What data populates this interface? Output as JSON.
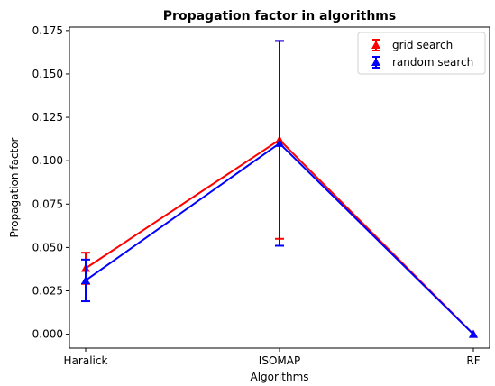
{
  "chart_data": {
    "type": "line",
    "title": "Propagation factor in algorithms",
    "xlabel": "Algorithms",
    "ylabel": "Propagation factor",
    "categories": [
      "Haralick",
      "ISOMAP",
      "RF"
    ],
    "ylim": [
      -0.008,
      0.177
    ],
    "yticks": [
      "0.000",
      "0.025",
      "0.050",
      "0.075",
      "0.100",
      "0.125",
      "0.150",
      "0.175"
    ],
    "grid": false,
    "legend_position": "top-right",
    "series": [
      {
        "name": "grid search",
        "color": "#ff0000",
        "marker": "triangle",
        "values": [
          0.038,
          0.112,
          0.0
        ],
        "errors": [
          0.009,
          0.057,
          0.0
        ]
      },
      {
        "name": "random search",
        "color": "#0000ff",
        "marker": "triangle",
        "values": [
          0.031,
          0.11,
          0.0
        ],
        "errors": [
          0.012,
          0.059,
          0.0
        ]
      }
    ]
  }
}
